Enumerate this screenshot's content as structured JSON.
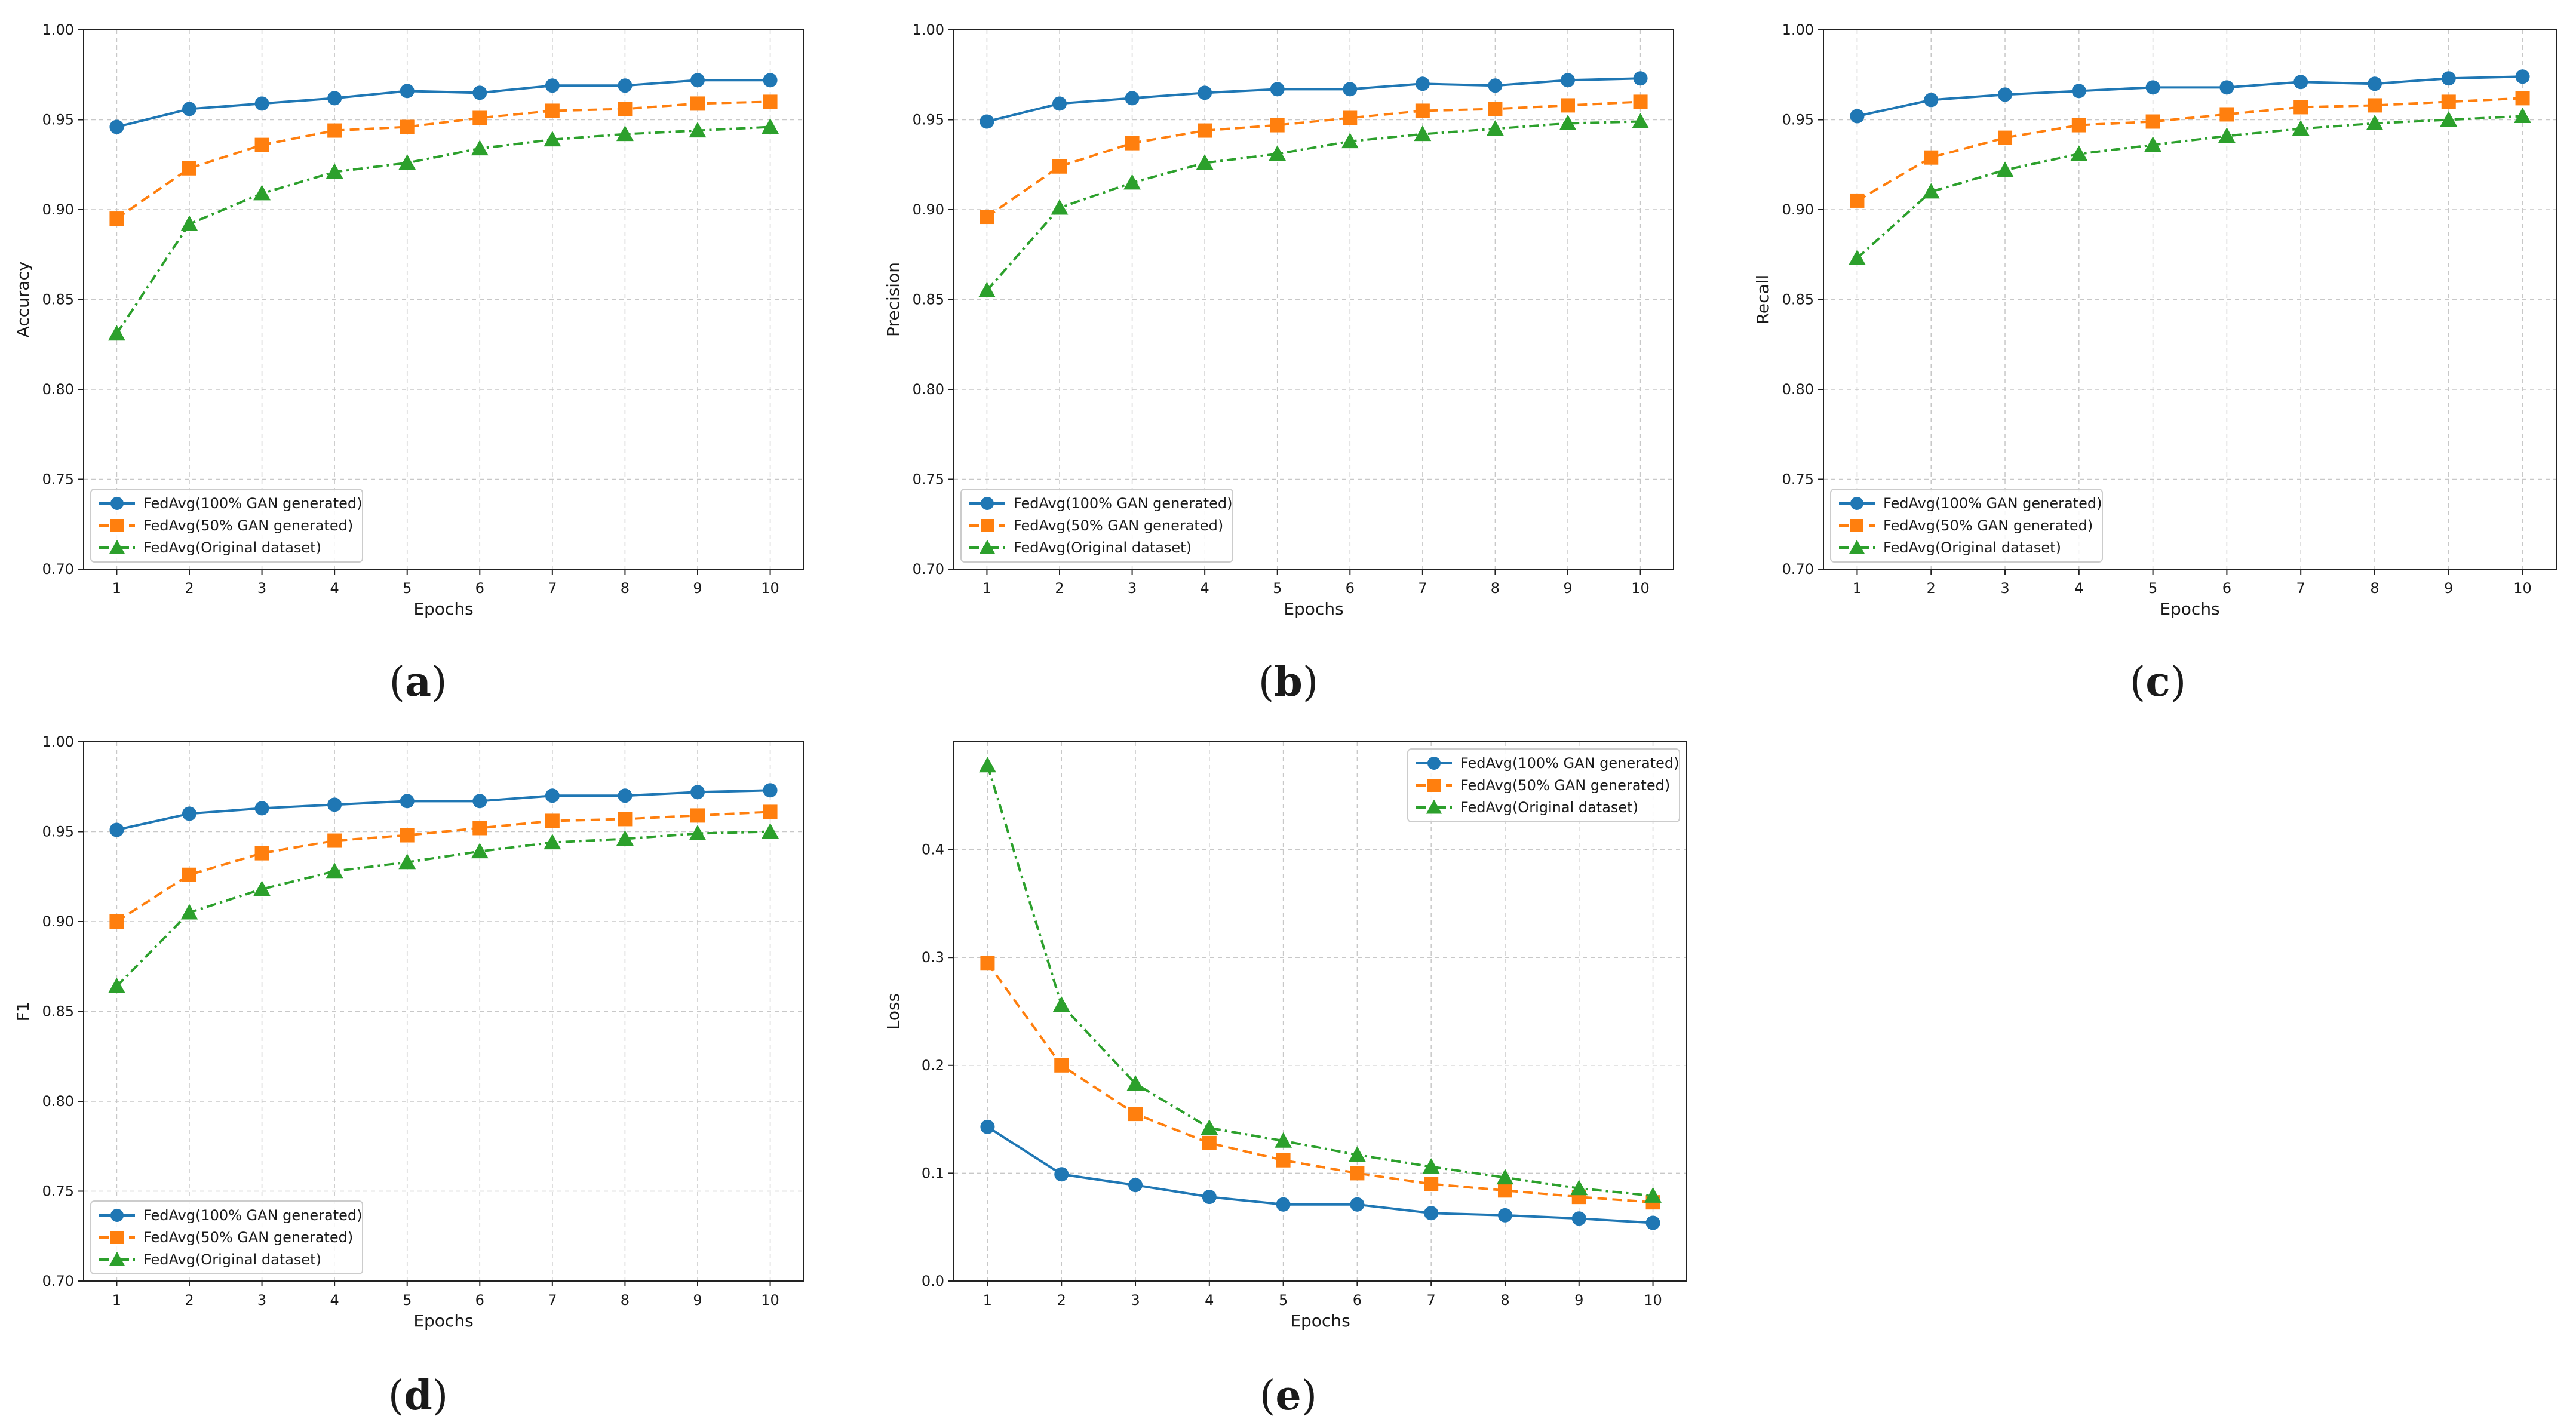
{
  "styles": {
    "colors": [
      "#1f77b4",
      "#ff7f0e",
      "#2ca02c"
    ],
    "markers": [
      "circle",
      "square",
      "triangle"
    ],
    "dashes": [
      "solid",
      "dashed",
      "dashdot"
    ],
    "grid_color": "#c8c8c8",
    "axis_color": "#222222"
  },
  "chart_data": [
    {
      "id": "a",
      "type": "line",
      "caption": {
        "open": "(",
        "letter": "a",
        "close": ")"
      },
      "xlabel": "Epochs",
      "ylabel": "Accuracy",
      "x": [
        1,
        2,
        3,
        4,
        5,
        6,
        7,
        8,
        9,
        10
      ],
      "xticks": [
        "1",
        "2",
        "3",
        "4",
        "5",
        "6",
        "7",
        "8",
        "9",
        "10"
      ],
      "ylim": [
        0.7,
        1.0
      ],
      "yticks": [
        0.7,
        0.75,
        0.8,
        0.85,
        0.9,
        0.95,
        1.0
      ],
      "ytick_labels": [
        "0.70",
        "0.75",
        "0.80",
        "0.85",
        "0.90",
        "0.95",
        "1.00"
      ],
      "grid": true,
      "legend_loc": "bottom-left",
      "series": [
        {
          "name": "FedAvg(100% GAN generated)",
          "values": [
            0.946,
            0.956,
            0.959,
            0.962,
            0.966,
            0.965,
            0.969,
            0.969,
            0.972,
            0.972
          ]
        },
        {
          "name": "FedAvg(50% GAN generated)",
          "values": [
            0.895,
            0.923,
            0.936,
            0.944,
            0.946,
            0.951,
            0.955,
            0.956,
            0.959,
            0.96
          ]
        },
        {
          "name": "FedAvg(Original dataset)",
          "values": [
            0.831,
            0.892,
            0.909,
            0.921,
            0.926,
            0.934,
            0.939,
            0.942,
            0.944,
            0.946
          ]
        }
      ]
    },
    {
      "id": "b",
      "type": "line",
      "caption": {
        "open": "(",
        "letter": "b",
        "close": ")"
      },
      "xlabel": "Epochs",
      "ylabel": "Precision",
      "x": [
        1,
        2,
        3,
        4,
        5,
        6,
        7,
        8,
        9,
        10
      ],
      "xticks": [
        "1",
        "2",
        "3",
        "4",
        "5",
        "6",
        "7",
        "8",
        "9",
        "10"
      ],
      "ylim": [
        0.7,
        1.0
      ],
      "yticks": [
        0.7,
        0.75,
        0.8,
        0.85,
        0.9,
        0.95,
        1.0
      ],
      "ytick_labels": [
        "0.70",
        "0.75",
        "0.80",
        "0.85",
        "0.90",
        "0.95",
        "1.00"
      ],
      "grid": true,
      "legend_loc": "bottom-left",
      "series": [
        {
          "name": "FedAvg(100% GAN generated)",
          "values": [
            0.949,
            0.959,
            0.962,
            0.965,
            0.967,
            0.967,
            0.97,
            0.969,
            0.972,
            0.973
          ]
        },
        {
          "name": "FedAvg(50% GAN generated)",
          "values": [
            0.896,
            0.924,
            0.937,
            0.944,
            0.947,
            0.951,
            0.955,
            0.956,
            0.958,
            0.96
          ]
        },
        {
          "name": "FedAvg(Original dataset)",
          "values": [
            0.855,
            0.901,
            0.915,
            0.926,
            0.931,
            0.938,
            0.942,
            0.945,
            0.948,
            0.949
          ]
        }
      ]
    },
    {
      "id": "c",
      "type": "line",
      "caption": {
        "open": "(",
        "letter": "c",
        "close": ")"
      },
      "xlabel": "Epochs",
      "ylabel": "Recall",
      "x": [
        1,
        2,
        3,
        4,
        5,
        6,
        7,
        8,
        9,
        10
      ],
      "xticks": [
        "1",
        "2",
        "3",
        "4",
        "5",
        "6",
        "7",
        "8",
        "9",
        "10"
      ],
      "ylim": [
        0.7,
        1.0
      ],
      "yticks": [
        0.7,
        0.75,
        0.8,
        0.85,
        0.9,
        0.95,
        1.0
      ],
      "ytick_labels": [
        "0.70",
        "0.75",
        "0.80",
        "0.85",
        "0.90",
        "0.95",
        "1.00"
      ],
      "grid": true,
      "legend_loc": "bottom-left",
      "series": [
        {
          "name": "FedAvg(100% GAN generated)",
          "values": [
            0.952,
            0.961,
            0.964,
            0.966,
            0.968,
            0.968,
            0.971,
            0.97,
            0.973,
            0.974
          ]
        },
        {
          "name": "FedAvg(50% GAN generated)",
          "values": [
            0.905,
            0.929,
            0.94,
            0.947,
            0.949,
            0.953,
            0.957,
            0.958,
            0.96,
            0.962
          ]
        },
        {
          "name": "FedAvg(Original dataset)",
          "values": [
            0.873,
            0.91,
            0.922,
            0.931,
            0.936,
            0.941,
            0.945,
            0.948,
            0.95,
            0.952
          ]
        }
      ]
    },
    {
      "id": "d",
      "type": "line",
      "caption": {
        "open": "(",
        "letter": "d",
        "close": ")"
      },
      "xlabel": "Epochs",
      "ylabel": "F1",
      "x": [
        1,
        2,
        3,
        4,
        5,
        6,
        7,
        8,
        9,
        10
      ],
      "xticks": [
        "1",
        "2",
        "3",
        "4",
        "5",
        "6",
        "7",
        "8",
        "9",
        "10"
      ],
      "ylim": [
        0.7,
        1.0
      ],
      "yticks": [
        0.7,
        0.75,
        0.8,
        0.85,
        0.9,
        0.95,
        1.0
      ],
      "ytick_labels": [
        "0.70",
        "0.75",
        "0.80",
        "0.85",
        "0.90",
        "0.95",
        "1.00"
      ],
      "grid": true,
      "legend_loc": "bottom-left",
      "series": [
        {
          "name": "FedAvg(100% GAN generated)",
          "values": [
            0.951,
            0.96,
            0.963,
            0.965,
            0.967,
            0.967,
            0.97,
            0.97,
            0.972,
            0.973
          ]
        },
        {
          "name": "FedAvg(50% GAN generated)",
          "values": [
            0.9,
            0.926,
            0.938,
            0.945,
            0.948,
            0.952,
            0.956,
            0.957,
            0.959,
            0.961
          ]
        },
        {
          "name": "FedAvg(Original dataset)",
          "values": [
            0.864,
            0.905,
            0.918,
            0.928,
            0.933,
            0.939,
            0.944,
            0.946,
            0.949,
            0.95
          ]
        }
      ]
    },
    {
      "id": "e",
      "type": "line",
      "caption": {
        "open": "(",
        "letter": "e",
        "close": ")"
      },
      "xlabel": "Epochs",
      "ylabel": "Loss",
      "x": [
        1,
        2,
        3,
        4,
        5,
        6,
        7,
        8,
        9,
        10
      ],
      "xticks": [
        "1",
        "2",
        "3",
        "4",
        "5",
        "6",
        "7",
        "8",
        "9",
        "10"
      ],
      "ylim": [
        0.0,
        0.5
      ],
      "yticks": [
        0.0,
        0.1,
        0.2,
        0.3,
        0.4
      ],
      "ytick_labels": [
        "0.0",
        "0.1",
        "0.2",
        "0.3",
        "0.4"
      ],
      "grid": true,
      "legend_loc": "top-right",
      "series": [
        {
          "name": "FedAvg(100% GAN generated)",
          "values": [
            0.143,
            0.099,
            0.089,
            0.078,
            0.071,
            0.071,
            0.063,
            0.061,
            0.058,
            0.054
          ]
        },
        {
          "name": "FedAvg(50% GAN generated)",
          "values": [
            0.295,
            0.2,
            0.155,
            0.128,
            0.112,
            0.1,
            0.09,
            0.084,
            0.078,
            0.073
          ]
        },
        {
          "name": "FedAvg(Original dataset)",
          "values": [
            0.478,
            0.256,
            0.183,
            0.142,
            0.13,
            0.117,
            0.106,
            0.096,
            0.086,
            0.079
          ]
        }
      ]
    }
  ]
}
